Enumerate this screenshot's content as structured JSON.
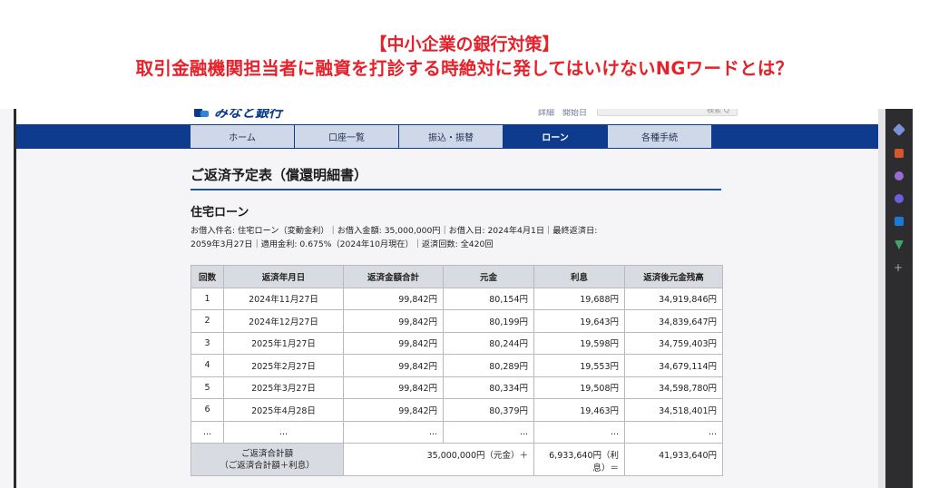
{
  "headline": {
    "line1": "【中小企業の銀行対策】",
    "line2": "取引金融機関担当者に融資を打診する時絶対に発してはいけないNGワードとは？",
    "color": "#e8202a"
  },
  "site": {
    "logo_text": "みなと銀行",
    "top_links": "詳細　開始日",
    "search_placeholder": "検索 Q"
  },
  "nav": {
    "items": [
      "ホーム",
      "口座一覧",
      "振込・振替",
      "ローン",
      "各種手続"
    ],
    "active": "ローン",
    "color": "#0f3b8f"
  },
  "page": {
    "title": "ご返済予定表（償還明細書）",
    "loan_title": "住宅ローン",
    "info_line1": "お借入件名: 住宅ローン（変動金利）｜お借入金額: 35,000,000円｜お借入日: 2024年4月1日｜最終返済日:",
    "info_line2": "2059年3月27日｜適用金利: 0.675%（2024年10月現在）｜返済回数: 全420回"
  },
  "table": {
    "headers": [
      "回数",
      "返済年月日",
      "返済金額合計",
      "元金",
      "利息",
      "返済後元金残高"
    ],
    "rows": [
      [
        "1",
        "2024年11月27日",
        "99,842円",
        "80,154円",
        "19,688円",
        "34,919,846円"
      ],
      [
        "2",
        "2024年12月27日",
        "99,842円",
        "80,199円",
        "19,643円",
        "34,839,647円"
      ],
      [
        "3",
        "2025年1月27日",
        "99,842円",
        "80,244円",
        "19,598円",
        "34,759,403円"
      ],
      [
        "4",
        "2025年2月27日",
        "99,842円",
        "80,289円",
        "19,553円",
        "34,679,114円"
      ],
      [
        "5",
        "2025年3月27日",
        "99,842円",
        "80,334円",
        "19,508円",
        "34,598,780円"
      ],
      [
        "6",
        "2025年4月28日",
        "99,842円",
        "80,379円",
        "19,463円",
        "34,518,401円"
      ],
      [
        "...",
        "...",
        "...",
        "...",
        "...",
        "..."
      ]
    ],
    "total": {
      "label_line1": "ご返済合計額",
      "label_line2": "（ご返済合計額＋利息）",
      "principal": "35,000,000円（元金）＋",
      "interest": "6,933,640円（利息）＝",
      "sum": "41,933,640円"
    }
  },
  "sidebar": {
    "icons": [
      {
        "name": "tag-icon",
        "color": "#7d8fd6"
      },
      {
        "name": "briefcase-icon",
        "color": "#d2562e"
      },
      {
        "name": "people-icon",
        "color": "#9a6ad6"
      },
      {
        "name": "copilot-icon",
        "color": "#6b5fe0"
      },
      {
        "name": "outlook-icon",
        "color": "#1c79d6"
      },
      {
        "name": "send-icon",
        "color": "#3fa66a"
      }
    ],
    "add_label": "+"
  }
}
